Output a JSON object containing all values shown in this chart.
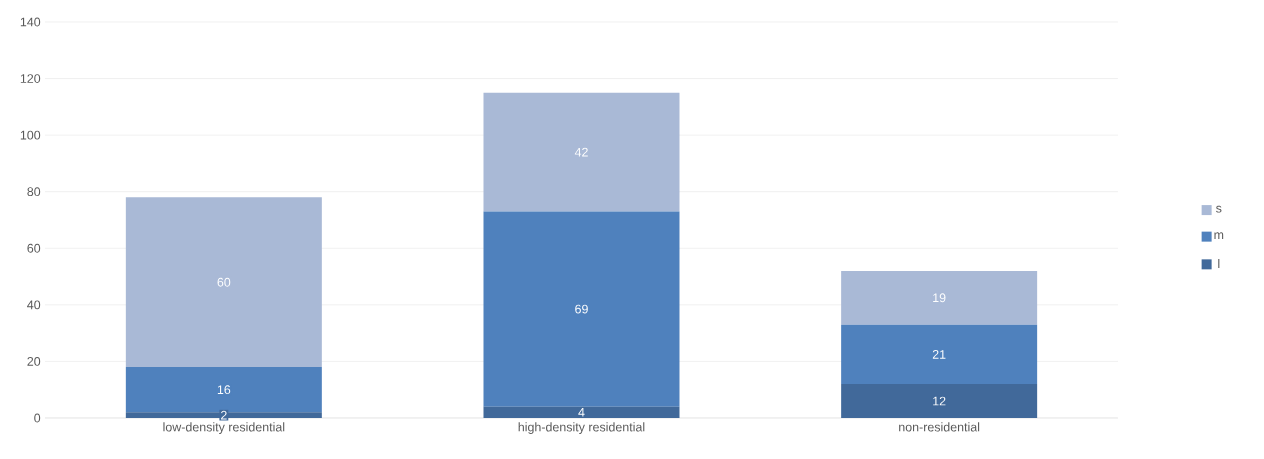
{
  "chart_data": {
    "type": "bar",
    "stacked": true,
    "categories": [
      "low-density residential",
      "high-density residential",
      "non-residential"
    ],
    "series": [
      {
        "name": "l",
        "color": "#41699a",
        "values": [
          2,
          4,
          12
        ]
      },
      {
        "name": "m",
        "color": "#4f81bd",
        "values": [
          16,
          69,
          21
        ]
      },
      {
        "name": "s",
        "color": "#a9b9d6",
        "values": [
          60,
          42,
          19
        ]
      }
    ],
    "ylim": [
      0,
      140
    ],
    "yticks": [
      0,
      20,
      40,
      60,
      80,
      100,
      120,
      140
    ],
    "grid": "y",
    "legend": "right",
    "data_labels": true
  }
}
